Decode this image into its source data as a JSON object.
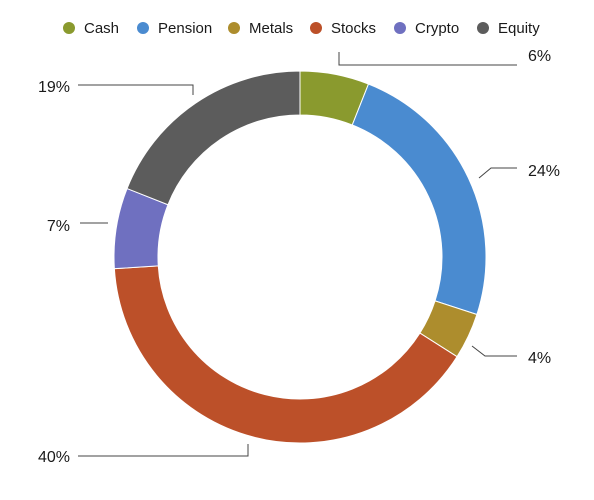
{
  "chart_data": {
    "type": "pie",
    "variant": "donut",
    "legend_position": "top",
    "series": [
      {
        "name": "Cash",
        "value": 6,
        "label": "6%",
        "color": "#8a9a2e"
      },
      {
        "name": "Pension",
        "value": 24,
        "label": "24%",
        "color": "#4a8bd0"
      },
      {
        "name": "Metals",
        "value": 4,
        "label": "4%",
        "color": "#ad8d2d"
      },
      {
        "name": "Stocks",
        "value": 40,
        "label": "40%",
        "color": "#bc5029"
      },
      {
        "name": "Crypto",
        "value": 7,
        "label": "7%",
        "color": "#6f70c0"
      },
      {
        "name": "Equity",
        "value": 19,
        "label": "19%",
        "color": "#5c5c5c"
      }
    ]
  }
}
